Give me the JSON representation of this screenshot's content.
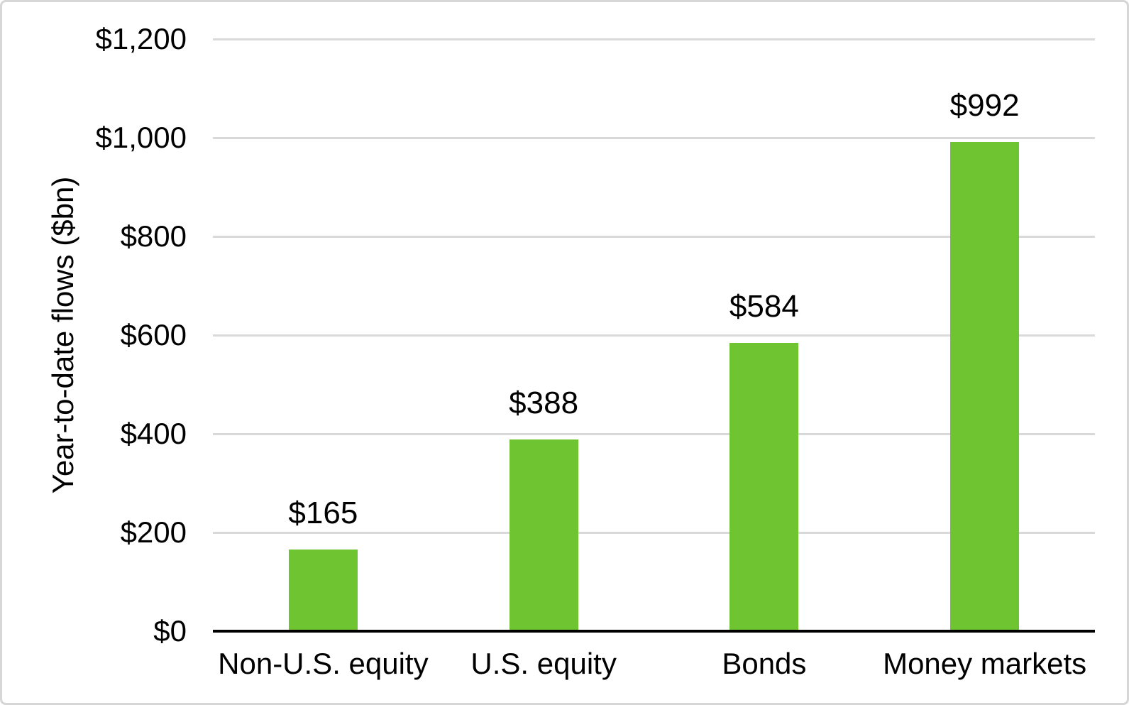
{
  "chart_data": {
    "type": "bar",
    "categories": [
      "Non-U.S. equity",
      "U.S. equity",
      "Bonds",
      "Money markets"
    ],
    "values": [
      165,
      388,
      584,
      992
    ],
    "data_labels": [
      "$165",
      "$388",
      "$584",
      "$992"
    ],
    "title": "",
    "xlabel": "",
    "ylabel": "Year-to-date flows ($bn)",
    "ylim": [
      0,
      1200
    ],
    "ytick_interval": 200,
    "ytick_labels": [
      "$0",
      "$200",
      "$400",
      "$600",
      "$800",
      "$1,000",
      "$1,200"
    ],
    "grid": "horizontal-only",
    "legend": "none",
    "colors": {
      "bar_fill": "#6ec431",
      "gridline": "#d9d9d9",
      "axis_line": "#000000",
      "text": "#000000",
      "frame_border": "#d6d6d6",
      "background": "#ffffff"
    }
  }
}
